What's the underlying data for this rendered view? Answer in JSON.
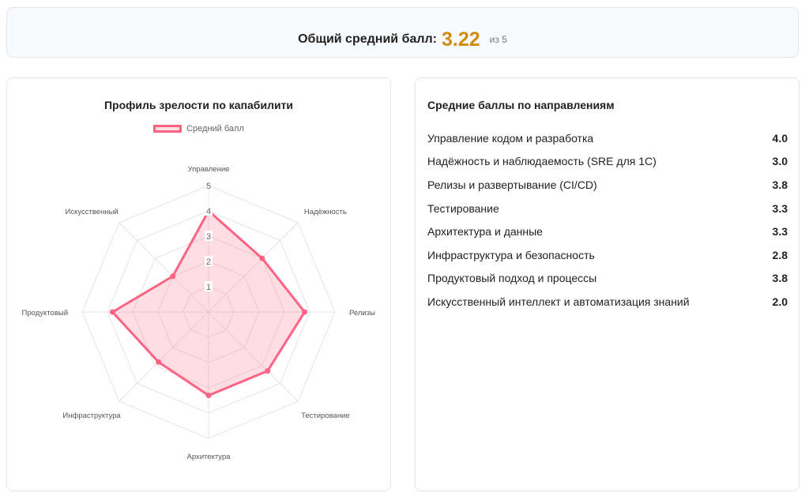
{
  "summary": {
    "label": "Общий средний балл:",
    "value": "3.22",
    "suffix": "из 5",
    "value_color": "#d08c0c"
  },
  "left_card": {
    "title": "Профиль зрелости по капабилити"
  },
  "right_card": {
    "title": "Средние баллы по направлениям",
    "items": [
      {
        "label": "Управление кодом и разработка",
        "value": "4.0"
      },
      {
        "label": "Надёжность и наблюдаемость (SRE для 1С)",
        "value": "3.0"
      },
      {
        "label": "Релизы и развертывание (CI/CD)",
        "value": "3.8"
      },
      {
        "label": "Тестирование",
        "value": "3.3"
      },
      {
        "label": "Архитектура и данные",
        "value": "3.3"
      },
      {
        "label": "Инфраструктура и безопасность",
        "value": "2.8"
      },
      {
        "label": "Продуктовый подход и процессы",
        "value": "3.8"
      },
      {
        "label": "Искусственный интеллект и автоматизация знаний",
        "value": "2.0"
      }
    ]
  },
  "chart_data": {
    "type": "radar",
    "title": "Профиль зрелости по капабилити",
    "categories": [
      "Управление",
      "Надёжность",
      "Релизы",
      "Тестирование",
      "Архитектура",
      "Инфраструктура",
      "Продуктовый",
      "Искусственный"
    ],
    "series": [
      {
        "name": "Средний балл",
        "values": [
          4.0,
          3.0,
          3.8,
          3.3,
          3.3,
          2.8,
          3.8,
          2.0
        ],
        "color": "#ff6384",
        "fill": "rgba(255,99,132,0.22)"
      }
    ],
    "r_ticks": [
      "1",
      "2",
      "3",
      "4",
      "5"
    ],
    "r_range": [
      0,
      5
    ],
    "grid": true,
    "legend_position": "top"
  }
}
